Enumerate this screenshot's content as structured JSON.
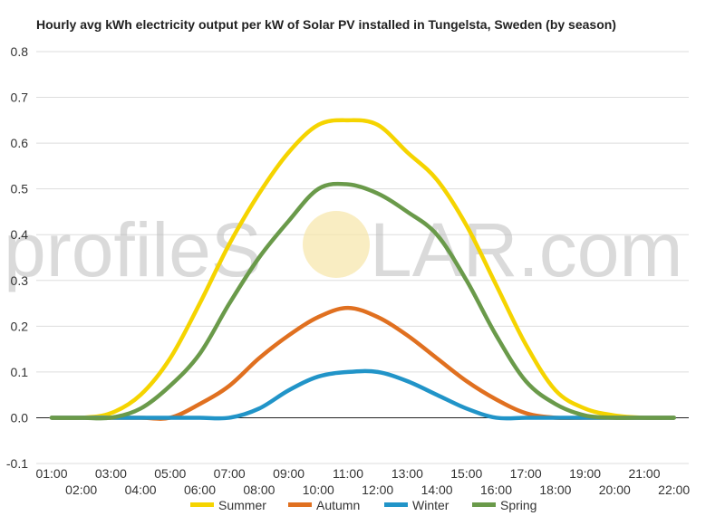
{
  "chart_data": {
    "type": "line",
    "title": "Hourly avg kWh electricity output per kW of Solar PV installed in Tungelsta, Sweden (by season)",
    "xlabel": "",
    "ylabel": "",
    "ylim": [
      -0.1,
      0.8
    ],
    "yticks": [
      "0.8",
      "0.7",
      "0.6",
      "0.5",
      "0.4",
      "0.3",
      "0.2",
      "0.1",
      "0.0",
      "-0.1"
    ],
    "ytick_values": [
      0.8,
      0.7,
      0.6,
      0.5,
      0.4,
      0.3,
      0.2,
      0.1,
      0.0,
      -0.1
    ],
    "x": [
      "01:00",
      "02:00",
      "03:00",
      "04:00",
      "05:00",
      "06:00",
      "07:00",
      "08:00",
      "09:00",
      "10:00",
      "11:00",
      "12:00",
      "13:00",
      "14:00",
      "15:00",
      "16:00",
      "17:00",
      "18:00",
      "19:00",
      "20:00",
      "21:00",
      "22:00"
    ],
    "grid": true,
    "legend_position": "bottom",
    "series": [
      {
        "name": "Summer",
        "color": "#f5d400",
        "values": [
          0,
          0,
          0.01,
          0.05,
          0.13,
          0.25,
          0.38,
          0.49,
          0.58,
          0.64,
          0.65,
          0.64,
          0.58,
          0.52,
          0.42,
          0.29,
          0.16,
          0.06,
          0.02,
          0.005,
          0,
          0
        ]
      },
      {
        "name": "Autumn",
        "color": "#e07020",
        "values": [
          0,
          0,
          0,
          0,
          0,
          0.03,
          0.07,
          0.13,
          0.18,
          0.22,
          0.24,
          0.22,
          0.18,
          0.13,
          0.08,
          0.04,
          0.01,
          0,
          0,
          0,
          0,
          0
        ]
      },
      {
        "name": "Winter",
        "color": "#2194c8",
        "values": [
          0,
          0,
          0,
          0,
          0,
          0,
          0,
          0.02,
          0.06,
          0.09,
          0.1,
          0.1,
          0.08,
          0.05,
          0.02,
          0,
          0,
          0,
          0,
          0,
          0,
          0
        ]
      },
      {
        "name": "Spring",
        "color": "#6a9a4a",
        "values": [
          0,
          0,
          0,
          0.02,
          0.07,
          0.14,
          0.25,
          0.35,
          0.43,
          0.5,
          0.51,
          0.49,
          0.45,
          0.4,
          0.3,
          0.18,
          0.08,
          0.03,
          0.005,
          0,
          0,
          0
        ]
      }
    ]
  },
  "watermark": {
    "text_left": "profileS",
    "text_right": "LAR.com"
  }
}
